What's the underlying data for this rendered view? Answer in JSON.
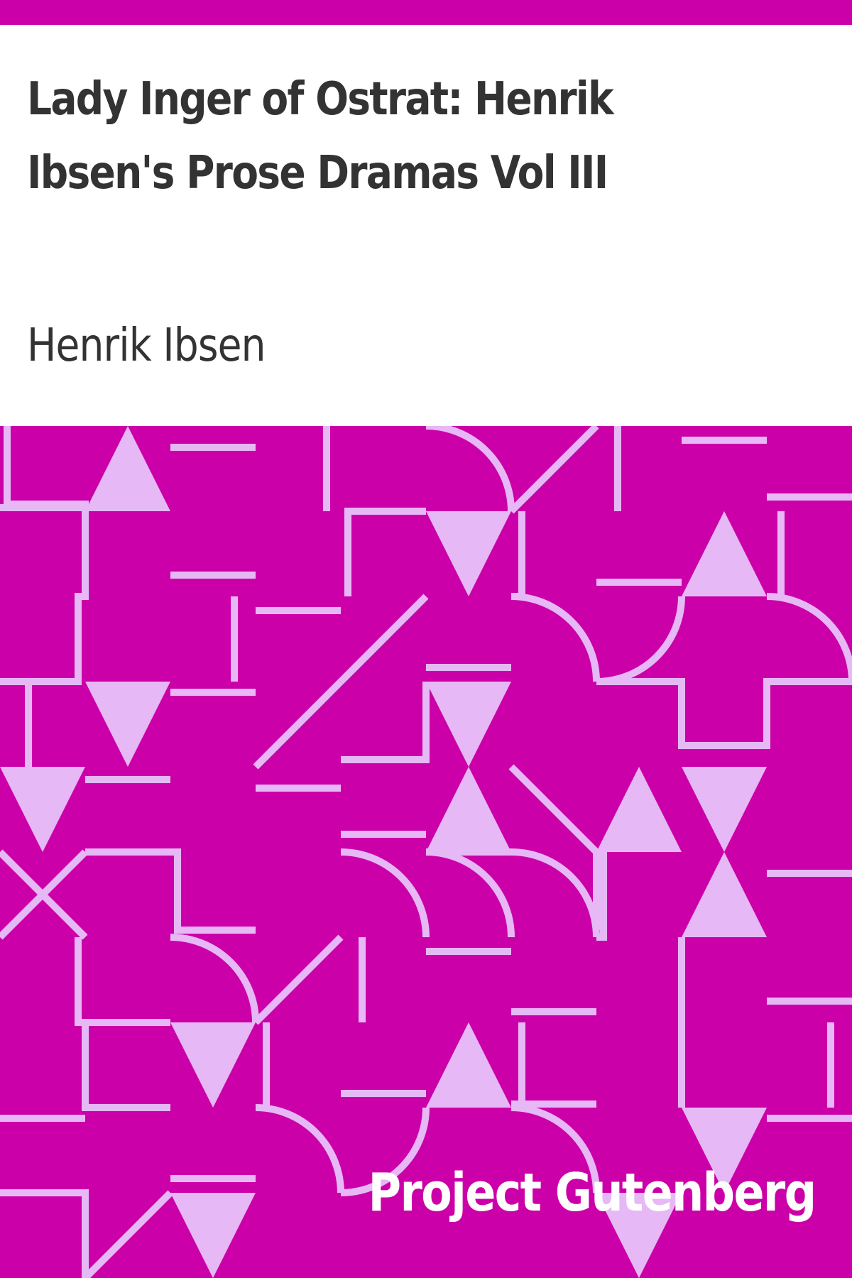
{
  "book": {
    "title": "Lady Inger of Ostrat: Henrik Ibsen's Prose Dramas Vol III",
    "author": "Henrik Ibsen",
    "publisher": "Project Gutenberg"
  },
  "colors": {
    "accent": "#CC00A8",
    "pattern_shape": "#E6B8F5",
    "text": "#333333",
    "background": "#ffffff"
  }
}
